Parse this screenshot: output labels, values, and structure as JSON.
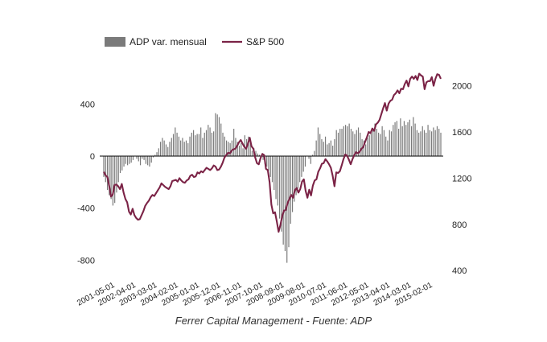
{
  "chart_data": {
    "type": "bar+line",
    "legend": {
      "placement": "top-left",
      "entries": [
        "ADP var. mensual",
        "S&P 500"
      ]
    },
    "axes": {
      "left": {
        "ticks": [
          400,
          0,
          -400,
          -800
        ],
        "ylim": [
          -800,
          400
        ]
      },
      "right": {
        "ticks": [
          2000,
          1600,
          1200,
          800,
          400
        ],
        "ylim": [
          400,
          2000
        ]
      },
      "x_ticks": [
        "2001-05-01",
        "2002-04-01",
        "2003-03-01",
        "2004-02-01",
        "2005-01-01",
        "2005-12-01",
        "2006-11-01",
        "2007-10-01",
        "2008-09-01",
        "2009-08-01",
        "2010-07-01",
        "2011-06-01",
        "2012-05-01",
        "2013-04-01",
        "2014-03-01",
        "2015-02-01"
      ]
    },
    "bar_series": {
      "name": "ADP var. mensual",
      "axis": "left",
      "start": "2001-05-01",
      "values": [
        -160,
        -200,
        -260,
        -300,
        -330,
        -380,
        -360,
        -280,
        -200,
        -130,
        -110,
        -80,
        -60,
        -70,
        -60,
        -50,
        -30,
        0,
        -20,
        -40,
        -70,
        -20,
        -30,
        -60,
        -70,
        -80,
        -50,
        -10,
        10,
        30,
        60,
        110,
        140,
        120,
        90,
        70,
        110,
        140,
        170,
        220,
        180,
        150,
        120,
        140,
        110,
        120,
        100,
        150,
        180,
        200,
        160,
        170,
        170,
        220,
        140,
        180,
        200,
        240,
        220,
        180,
        190,
        330,
        320,
        300,
        250,
        180,
        150,
        120,
        110,
        100,
        120,
        210,
        140,
        110,
        80,
        100,
        60,
        160,
        130,
        150,
        110,
        40,
        60,
        40,
        20,
        10,
        -10,
        -30,
        -60,
        -80,
        -110,
        -160,
        -200,
        -260,
        -330,
        -380,
        -480,
        -580,
        -680,
        -730,
        -820,
        -700,
        -520,
        -430,
        -350,
        -300,
        -250,
        -200,
        -160,
        -120,
        -80,
        0,
        -20,
        -60,
        10,
        40,
        120,
        220,
        170,
        130,
        110,
        150,
        90,
        100,
        120,
        80,
        130,
        200,
        180,
        210,
        210,
        230,
        240,
        230,
        250,
        210,
        190,
        170,
        200,
        220,
        180,
        130,
        120,
        90,
        140,
        160,
        190,
        210,
        250,
        210,
        180,
        170,
        230,
        200,
        150,
        120,
        200,
        190,
        240,
        260,
        270,
        210,
        290,
        230,
        270,
        240,
        260,
        280,
        230,
        300,
        250,
        200,
        180,
        190,
        230,
        200,
        180,
        240,
        200,
        190,
        220,
        200,
        230,
        210,
        180
      ]
    },
    "line_series": {
      "name": "S&P 500",
      "axis": "right",
      "start": "2001-05-01",
      "color": "#7b2346",
      "values": [
        1255,
        1225,
        1210,
        1135,
        1040,
        1060,
        1140,
        1145,
        1130,
        1105,
        1150,
        1075,
        1020,
        990,
        910,
        885,
        935,
        880,
        855,
        840,
        845,
        880,
        915,
        960,
        985,
        1005,
        1035,
        1055,
        1045,
        1070,
        1095,
        1120,
        1155,
        1140,
        1125,
        1115,
        1105,
        1130,
        1175,
        1180,
        1185,
        1170,
        1200,
        1180,
        1165,
        1160,
        1180,
        1190,
        1220,
        1230,
        1210,
        1215,
        1250,
        1240,
        1260,
        1250,
        1270,
        1290,
        1280,
        1270,
        1285,
        1310,
        1300,
        1270,
        1275,
        1300,
        1335,
        1380,
        1400,
        1420,
        1415,
        1440,
        1450,
        1455,
        1480,
        1510,
        1530,
        1500,
        1470,
        1455,
        1500,
        1550,
        1475,
        1455,
        1380,
        1330,
        1320,
        1375,
        1410,
        1400,
        1280,
        1270,
        1165,
        970,
        895,
        905,
        825,
        735,
        795,
        870,
        920,
        925,
        985,
        1020,
        1055,
        1030,
        1095,
        1115,
        1075,
        1105,
        1170,
        1190,
        1090,
        1030,
        1100,
        1050,
        1135,
        1180,
        1190,
        1255,
        1285,
        1325,
        1330,
        1365,
        1345,
        1320,
        1290,
        1220,
        1130,
        1250,
        1245,
        1260,
        1310,
        1365,
        1405,
        1395,
        1360,
        1320,
        1365,
        1400,
        1425,
        1415,
        1430,
        1455,
        1470,
        1515,
        1555,
        1600,
        1590,
        1630,
        1610,
        1665,
        1680,
        1705,
        1755,
        1805,
        1850,
        1785,
        1845,
        1870,
        1880,
        1920,
        1935,
        1960,
        1935,
        1975,
        1970,
        2015,
        2045,
        1995,
        2060,
        2080,
        2060,
        2085,
        2050,
        2105,
        2090,
        2080,
        1970,
        2030,
        2040,
        2040,
        2075,
        2000,
        2060,
        2100,
        2095,
        2060
      ]
    }
  },
  "source_note": "Ferrer Capital Management - Fuente: ADP"
}
